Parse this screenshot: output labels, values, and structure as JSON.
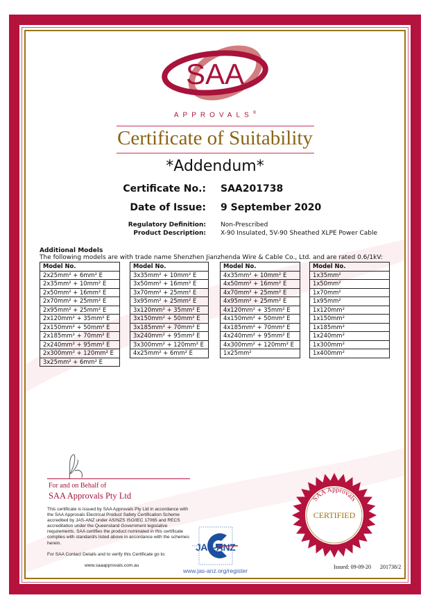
{
  "logo": {
    "text": "SAA",
    "subtitle": "APPROVALS",
    "registered_mark": "®"
  },
  "title": "Certificate of Suitability",
  "subtitle": "*Addendum*",
  "certificate": {
    "number_label": "Certificate No.:",
    "number": "SAA201738",
    "date_label": "Date of Issue:",
    "date": "9 September 2020",
    "regulatory_label": "Regulatory Definition:",
    "regulatory": "Non-Prescribed",
    "product_label": "Product Description:",
    "product": "X-90 Insulated, 5V-90 Sheathed XLPE Power Cable"
  },
  "additional_models": {
    "title": "Additional Models",
    "intro": "The following models are with trade name Shenzhen Jianzhenda Wire & Cable Co., Ltd. and are rated 0.6/1kV:",
    "header": "Model No.",
    "columns": [
      [
        "2x25mm² + 6mm² E",
        "2x35mm² + 10mm² E",
        "2x50mm² + 16mm² E",
        "2x70mm² + 25mm² E",
        "2x95mm² + 25mm² E",
        "2x120mm² + 35mm² E",
        "2x150mm² + 50mm² E",
        "2x185mm² + 70mm² E",
        "2x240mm² + 95mm² E",
        "2x300mm² + 120mm² E",
        "3x25mm² + 6mm² E"
      ],
      [
        "3x35mm² + 10mm² E",
        "3x50mm² + 16mm² E",
        "3x70mm² + 25mm² E",
        "3x95mm² + 25mm² E",
        "3x120mm² + 35mm² E",
        "3x150mm² + 50mm² E",
        "3x185mm² + 70mm² E",
        "3x240mm² + 95mm² E",
        "3x300mm² + 120mm² E",
        "4x25mm² + 6mm² E"
      ],
      [
        "4x35mm² + 10mm² E",
        "4x50mm² + 16mm² E",
        "4x70mm² + 25mm² E",
        "4x95mm² + 25mm² E",
        "4x120mm² + 35mm² E",
        "4x150mm² + 50mm² E",
        "4x185mm² + 70mm² E",
        "4x240mm² + 95mm² E",
        "4x300mm² + 120mm² E",
        "1x25mm²"
      ],
      [
        "1x35mm²",
        "1x50mm²",
        "1x70mm²",
        "1x95mm²",
        "1x120mm²",
        "1x150mm²",
        "1x185mm²",
        "1x240mm²",
        "1x300mm²",
        "1x400mm²"
      ]
    ]
  },
  "footer": {
    "behalf": "For and on Behalf of",
    "company": "SAA Approvals Pty Ltd",
    "statement": "This certificate is issued by SAA Approvals Pty Ltd in accordance with the SAA Approvals Electrical Product Safety Certification Scheme accredited by JAS-ANZ under AS/NZS ISO/IEC 17065 and RECS accreditation under the Queensland Government legislative requirements. SAA certifies the product nominated in this certificate complies with standard/s listed above in accordance with the schemes herein.",
    "contact": "For SAA Contact Details and to verify this Certificate go to:",
    "website": "www.saaapprovals.com.au",
    "jas_anz": "JAS-ANZ",
    "jas_url": "www.jas-anz.org/register",
    "seal_top": "SAA Approvals",
    "seal_center": "CERTIFIED",
    "issued": "Issued: 09-09-20",
    "reference": "201738/2"
  },
  "colors": {
    "brand_red": "#b5123e",
    "gold": "#8a6414",
    "jas_blue": "#1d4fa0"
  }
}
